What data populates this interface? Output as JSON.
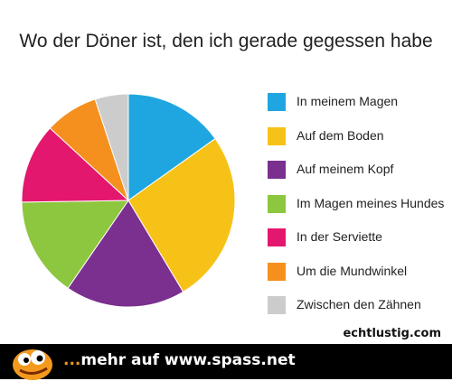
{
  "chart_data": {
    "type": "pie",
    "title": "Wo der Döner ist, den ich gerade gegessen habe",
    "categories": [
      "In meinem Magen",
      "Auf dem Boden",
      "Auf meinem Kopf",
      "Im Magen meines Hundes",
      "In der Serviette",
      "Um die Mundwinkel",
      "Zwischen den Zähnen"
    ],
    "values": [
      15,
      26,
      18,
      15,
      12,
      8,
      5
    ],
    "colors": [
      "#1fa6e0",
      "#f7c218",
      "#7b2f8e",
      "#8dc63f",
      "#e3176d",
      "#f5901e",
      "#cccccc"
    ],
    "legend": "right"
  },
  "source_label": "echtlustig.com",
  "footer": {
    "dots": "...",
    "text": "mehr auf www.spass.net"
  }
}
